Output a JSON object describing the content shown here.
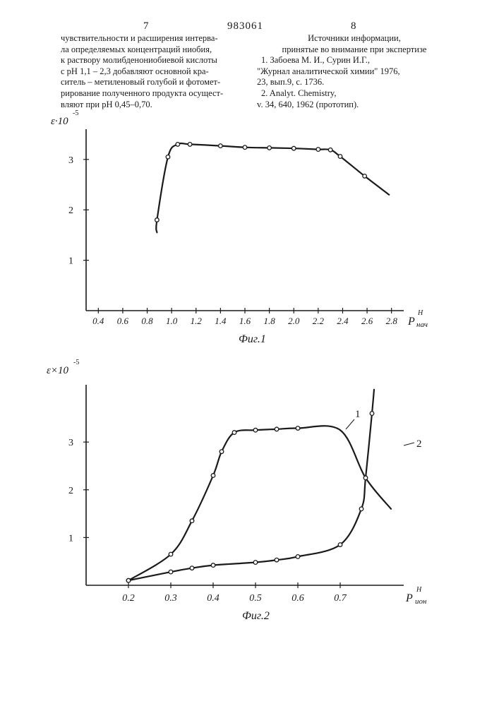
{
  "page": {
    "left_number": "7",
    "patent_number": "983061",
    "right_number": "8"
  },
  "left_column": [
    "чувствительности и расширения интерва-",
    "ла определяемых концентраций ниобия,",
    "к раствору молибденониобиевой кислоты",
    "с рН 1,1 – 2,3 добавляют основной кра-",
    "ситель – метиленовый голубой и фотомет-",
    "рирование полученного продукта осущест-",
    "вляют при рН 0,45–0,70."
  ],
  "right_column": {
    "heading": [
      "Источники информации,",
      "принятые во внимание при экспертизе"
    ],
    "references": [
      "1. Забоева М. И., Сурин И.Г.,",
      "\"Журнал аналитической химии\" 1976,",
      "23, вып.9, с. 1736.",
      "2. Analyt. Chemistry,",
      "v. 34, 640, 1962 (прототип)."
    ]
  },
  "chart_data": [
    {
      "type": "line",
      "caption": "Фиг.1",
      "ylabel": "ε·10",
      "ylabel_exp": "-5",
      "xlabel": "P",
      "xlabel_sup": "H",
      "xlabel_sub": "нач",
      "xlim": [
        0.3,
        2.9
      ],
      "ylim": [
        0,
        3.6
      ],
      "x_ticks": [
        "0.4",
        "0.6",
        "0.8",
        "1.0",
        "1.2",
        "1.4",
        "1.6",
        "1.8",
        "2.0",
        "2.2",
        "2.4",
        "2.6",
        "2.8"
      ],
      "y_ticks": [
        "1",
        "2",
        "3"
      ],
      "series": [
        {
          "marker_points": [
            {
              "x": 0.88,
              "y": 1.8
            },
            {
              "x": 0.97,
              "y": 3.05
            },
            {
              "x": 1.05,
              "y": 3.3
            },
            {
              "x": 1.15,
              "y": 3.3
            },
            {
              "x": 1.4,
              "y": 3.27
            },
            {
              "x": 1.6,
              "y": 3.24
            },
            {
              "x": 1.8,
              "y": 3.23
            },
            {
              "x": 2.0,
              "y": 3.22
            },
            {
              "x": 2.2,
              "y": 3.2
            },
            {
              "x": 2.3,
              "y": 3.19
            },
            {
              "x": 2.38,
              "y": 3.06
            },
            {
              "x": 2.58,
              "y": 2.67
            }
          ],
          "curve": [
            {
              "x": 0.88,
              "y": 1.55
            },
            {
              "x": 0.88,
              "y": 1.8
            },
            {
              "x": 0.97,
              "y": 3.05
            },
            {
              "x": 1.05,
              "y": 3.3
            },
            {
              "x": 1.15,
              "y": 3.3
            },
            {
              "x": 1.4,
              "y": 3.27
            },
            {
              "x": 1.6,
              "y": 3.24
            },
            {
              "x": 1.8,
              "y": 3.23
            },
            {
              "x": 2.0,
              "y": 3.22
            },
            {
              "x": 2.2,
              "y": 3.2
            },
            {
              "x": 2.3,
              "y": 3.19
            },
            {
              "x": 2.38,
              "y": 3.06
            },
            {
              "x": 2.58,
              "y": 2.67
            },
            {
              "x": 2.78,
              "y": 2.3
            }
          ]
        }
      ]
    },
    {
      "type": "line",
      "caption": "Фиг.2",
      "ylabel": "ε×10",
      "ylabel_exp": "-5",
      "xlabel": "P",
      "xlabel_sup": "H",
      "xlabel_sub": "ион",
      "xlim": [
        0.1,
        0.85
      ],
      "ylim": [
        0,
        4.2
      ],
      "x_ticks": [
        "0.2",
        "0.3",
        "0.4",
        "0.5",
        "0.6",
        "0.7"
      ],
      "y_ticks": [
        "1",
        "2",
        "3"
      ],
      "series": [
        {
          "name": "1",
          "marker_points": [
            {
              "x": 0.2,
              "y": 0.1
            },
            {
              "x": 0.3,
              "y": 0.65
            },
            {
              "x": 0.35,
              "y": 1.35
            },
            {
              "x": 0.4,
              "y": 2.3
            },
            {
              "x": 0.42,
              "y": 2.8
            },
            {
              "x": 0.45,
              "y": 3.2
            },
            {
              "x": 0.5,
              "y": 3.25
            },
            {
              "x": 0.55,
              "y": 3.27
            },
            {
              "x": 0.6,
              "y": 3.29
            }
          ],
          "curve": [
            {
              "x": 0.2,
              "y": 0.1
            },
            {
              "x": 0.3,
              "y": 0.65
            },
            {
              "x": 0.35,
              "y": 1.35
            },
            {
              "x": 0.4,
              "y": 2.3
            },
            {
              "x": 0.42,
              "y": 2.8
            },
            {
              "x": 0.45,
              "y": 3.2
            },
            {
              "x": 0.5,
              "y": 3.25
            },
            {
              "x": 0.55,
              "y": 3.27
            },
            {
              "x": 0.6,
              "y": 3.29
            },
            {
              "x": 0.7,
              "y": 3.25
            },
            {
              "x": 0.76,
              "y": 2.25
            },
            {
              "x": 0.82,
              "y": 1.6
            }
          ]
        },
        {
          "name": "2",
          "marker_points": [
            {
              "x": 0.2,
              "y": 0.1
            },
            {
              "x": 0.3,
              "y": 0.28
            },
            {
              "x": 0.35,
              "y": 0.36
            },
            {
              "x": 0.4,
              "y": 0.42
            },
            {
              "x": 0.5,
              "y": 0.48
            },
            {
              "x": 0.55,
              "y": 0.53
            },
            {
              "x": 0.6,
              "y": 0.6
            },
            {
              "x": 0.7,
              "y": 0.85
            },
            {
              "x": 0.75,
              "y": 1.6
            },
            {
              "x": 0.76,
              "y": 2.25
            },
            {
              "x": 0.775,
              "y": 3.6
            }
          ],
          "curve": [
            {
              "x": 0.2,
              "y": 0.1
            },
            {
              "x": 0.3,
              "y": 0.28
            },
            {
              "x": 0.35,
              "y": 0.36
            },
            {
              "x": 0.4,
              "y": 0.42
            },
            {
              "x": 0.5,
              "y": 0.48
            },
            {
              "x": 0.55,
              "y": 0.53
            },
            {
              "x": 0.6,
              "y": 0.6
            },
            {
              "x": 0.7,
              "y": 0.85
            },
            {
              "x": 0.75,
              "y": 1.6
            },
            {
              "x": 0.76,
              "y": 2.25
            },
            {
              "x": 0.775,
              "y": 3.6
            },
            {
              "x": 0.78,
              "y": 4.1
            }
          ]
        }
      ]
    }
  ]
}
